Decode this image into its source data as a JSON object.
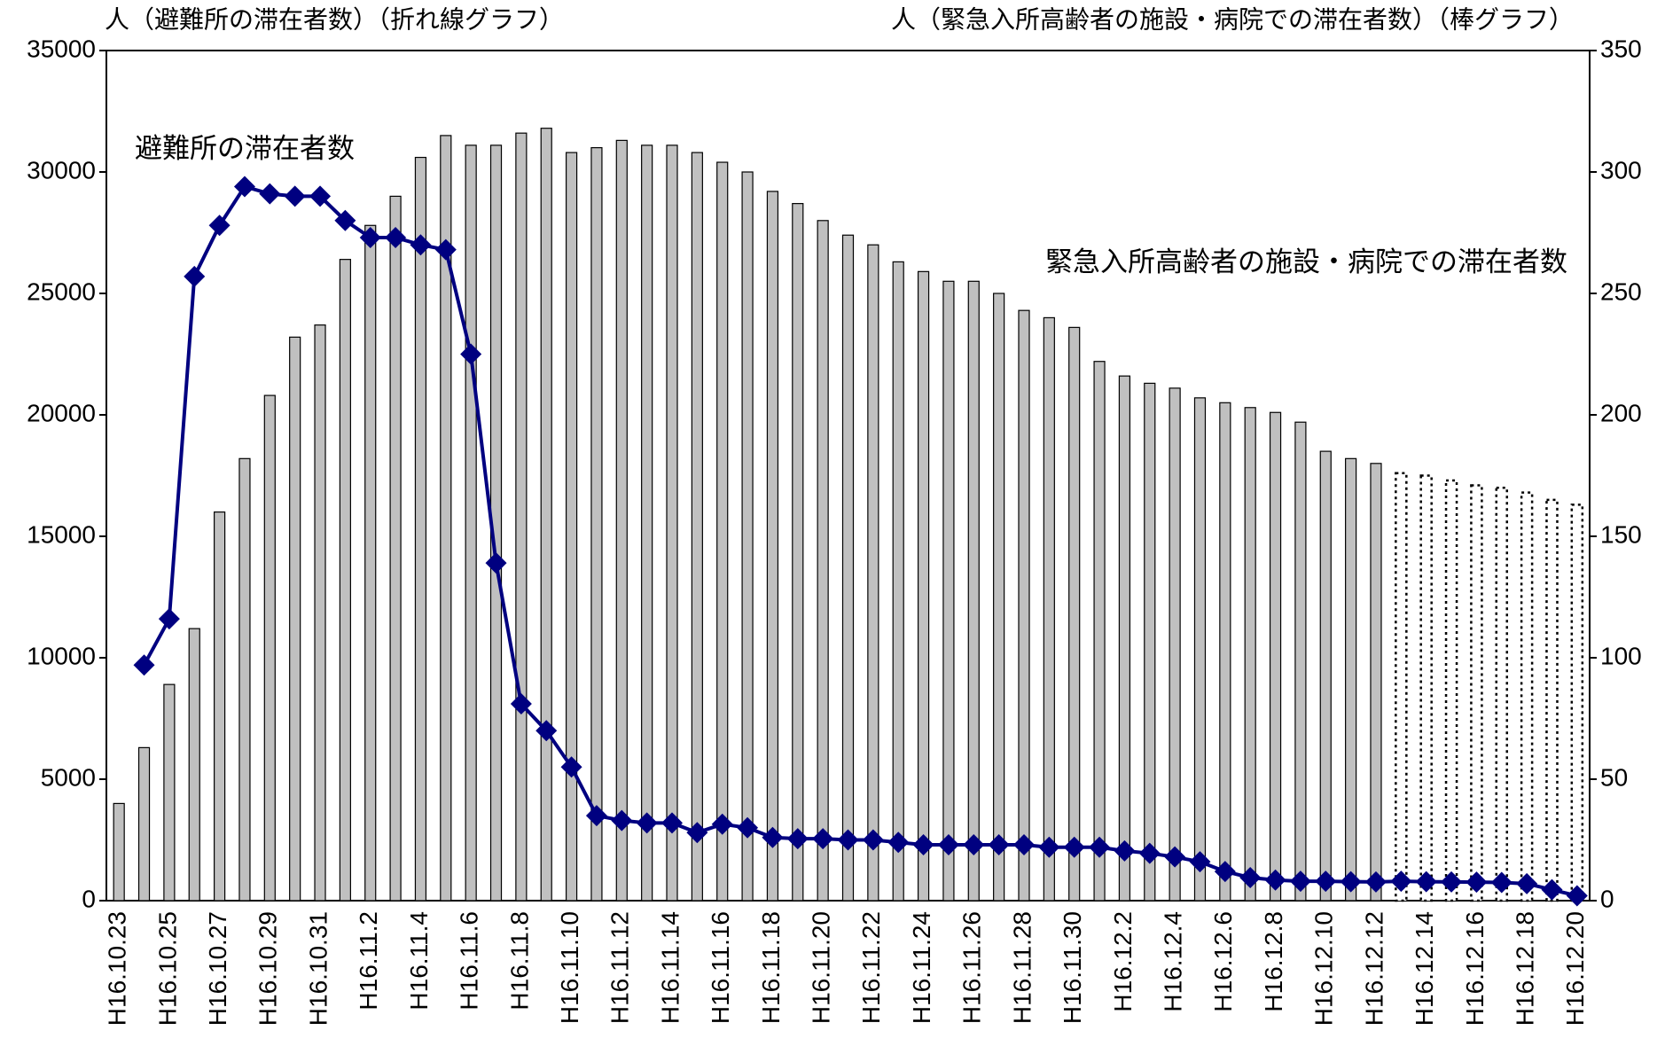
{
  "chart_data": {
    "type": "combo",
    "ylabel": "人（避難所の滞在者数）（折れ線グラフ）",
    "y2label": "人（緊急入所高齢者の施設・病院での滞在者数）（棒グラフ）",
    "categories": [
      "H16.10.23",
      null,
      "H16.10.25",
      null,
      "H16.10.27",
      null,
      "H16.10.29",
      null,
      "H16.10.31",
      null,
      "H16.11.2",
      null,
      "H16.11.4",
      null,
      "H16.11.6",
      null,
      "H16.11.8",
      null,
      "H16.11.10",
      null,
      "H16.11.12",
      null,
      "H16.11.14",
      null,
      "H16.11.16",
      null,
      "H16.11.18",
      null,
      "H16.11.20",
      null,
      "H16.11.22",
      null,
      "H16.11.24",
      null,
      "H16.11.26",
      null,
      "H16.11.28",
      null,
      "H16.11.30",
      null,
      "H16.12.2",
      null,
      "H16.12.4",
      null,
      "H16.12.6",
      null,
      "H16.12.8",
      null,
      "H16.12.10",
      null,
      "H16.12.12",
      null,
      "H16.12.14",
      null,
      "H16.12.16",
      null,
      "H16.12.18",
      null,
      "H16.12.20"
    ],
    "series": [
      {
        "name": "緊急入所高齢者の施設・病院での滞在者数",
        "type": "bar",
        "axis": "y2",
        "color": "#c0c0c0",
        "values": [
          40,
          63,
          89,
          112,
          160,
          182,
          208,
          232,
          237,
          264,
          278,
          290,
          306,
          315,
          311,
          311,
          316,
          318,
          308,
          310,
          313,
          311,
          311,
          308,
          304,
          300,
          292,
          287,
          280,
          274,
          270,
          263,
          259,
          255,
          255,
          250,
          243,
          240,
          236,
          222,
          216,
          213,
          211,
          207,
          205,
          203,
          201,
          197,
          185,
          182,
          180,
          176,
          175,
          173,
          171,
          170,
          168,
          165,
          163
        ],
        "styles": [
          "solid",
          "solid",
          "solid",
          "solid",
          "solid",
          "solid",
          "solid",
          "solid",
          "solid",
          "solid",
          "solid",
          "solid",
          "solid",
          "solid",
          "solid",
          "solid",
          "solid",
          "solid",
          "solid",
          "solid",
          "solid",
          "solid",
          "solid",
          "solid",
          "solid",
          "solid",
          "solid",
          "solid",
          "solid",
          "solid",
          "solid",
          "solid",
          "solid",
          "solid",
          "solid",
          "solid",
          "solid",
          "solid",
          "solid",
          "solid",
          "solid",
          "solid",
          "solid",
          "solid",
          "solid",
          "solid",
          "solid",
          "solid",
          "solid",
          "solid",
          "solid",
          "dotted",
          "dotted",
          "dotted",
          "dotted",
          "dotted",
          "dotted",
          "dotted",
          "dotted"
        ]
      },
      {
        "name": "避難所の滞在者数",
        "type": "line",
        "axis": "y",
        "color": "#000080",
        "values": [
          null,
          9700,
          11600,
          25700,
          27800,
          29400,
          29100,
          29000,
          29000,
          28000,
          27300,
          27300,
          27000,
          26800,
          22500,
          13900,
          8100,
          7000,
          5500,
          3500,
          3300,
          3200,
          3200,
          2800,
          3150,
          3000,
          2600,
          2550,
          2550,
          2500,
          2500,
          2400,
          2300,
          2300,
          2300,
          2300,
          2300,
          2200,
          2200,
          2200,
          2050,
          1950,
          1800,
          1600,
          1200,
          950,
          850,
          800,
          800,
          780,
          770,
          800,
          780,
          770,
          760,
          750,
          700,
          450,
          200
        ]
      }
    ],
    "ylim": [
      0,
      35000
    ],
    "yticks": [
      0,
      5000,
      10000,
      15000,
      20000,
      25000,
      30000,
      35000
    ],
    "y2lim": [
      0,
      350
    ],
    "y2ticks": [
      0,
      50,
      100,
      150,
      200,
      250,
      300,
      350
    ],
    "grid": false
  }
}
